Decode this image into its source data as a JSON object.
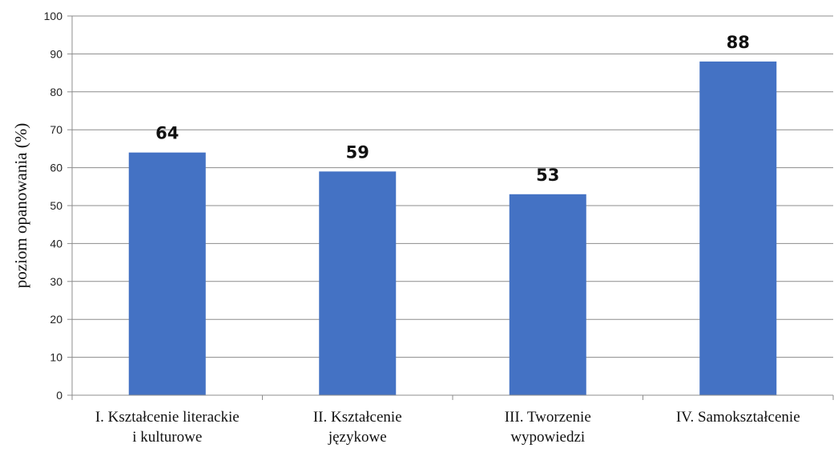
{
  "chart_data": {
    "type": "bar",
    "categories": [
      [
        "I. Kształcenie literackie",
        "i kulturowe"
      ],
      [
        "II. Kształcenie",
        "językowe"
      ],
      [
        "III. Tworzenie",
        "wypowiedzi"
      ],
      [
        "IV. Samokształcenie"
      ]
    ],
    "values": [
      64,
      59,
      53,
      88
    ],
    "data_labels": [
      "64",
      "59",
      "53",
      "88"
    ],
    "ylabel": "poziom opanowania (%)",
    "ylim": [
      0,
      100
    ],
    "yticks": [
      0,
      10,
      20,
      30,
      40,
      50,
      60,
      70,
      80,
      90,
      100
    ],
    "bar_color": "#4472C4",
    "grid": true,
    "legend": "none"
  }
}
